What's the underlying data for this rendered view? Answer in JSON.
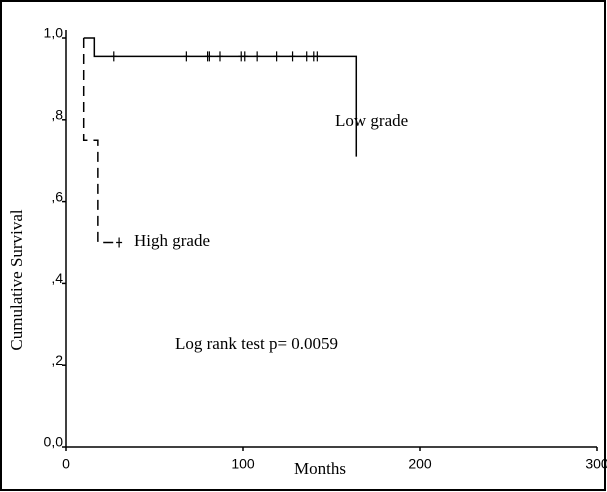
{
  "chart_data": {
    "type": "step",
    "x_label": "Months",
    "y_label": "Cumulative Survival",
    "annotations": [
      "Log rank test p= 0.0059"
    ],
    "xlim": [
      0,
      300
    ],
    "xticks": [
      0,
      100,
      200,
      300
    ],
    "ylim": [
      0,
      1
    ],
    "yticks": [
      {
        "value": 0,
        "label": "0,0"
      },
      {
        "value": 0.2,
        "label": ",2"
      },
      {
        "value": 0.4,
        "label": ",4"
      },
      {
        "value": 0.6,
        "label": ",6"
      },
      {
        "value": 0.8,
        "label": ",8"
      },
      {
        "value": 1,
        "label": "1,0"
      }
    ],
    "series": [
      {
        "name": "Low grade",
        "color": "#000000",
        "dash": false,
        "x": [
          10,
          16,
          16,
          164,
          164
        ],
        "values": [
          1,
          1,
          0.955,
          0.955,
          0.71
        ],
        "censor_x": [
          27,
          68,
          80,
          81,
          87,
          99,
          101,
          108,
          119,
          128,
          136,
          140,
          142
        ],
        "censor_values": [
          0.955,
          0.955,
          0.955,
          0.955,
          0.955,
          0.955,
          0.955,
          0.955,
          0.955,
          0.955,
          0.955,
          0.955,
          0.955
        ]
      },
      {
        "name": "High grade",
        "color": "#000000",
        "dash": true,
        "x": [
          10,
          10,
          18,
          18,
          30
        ],
        "values": [
          1,
          0.75,
          0.75,
          0.5,
          0.5
        ],
        "censor_x": [
          30
        ],
        "censor_values": [
          0.5
        ]
      }
    ]
  }
}
